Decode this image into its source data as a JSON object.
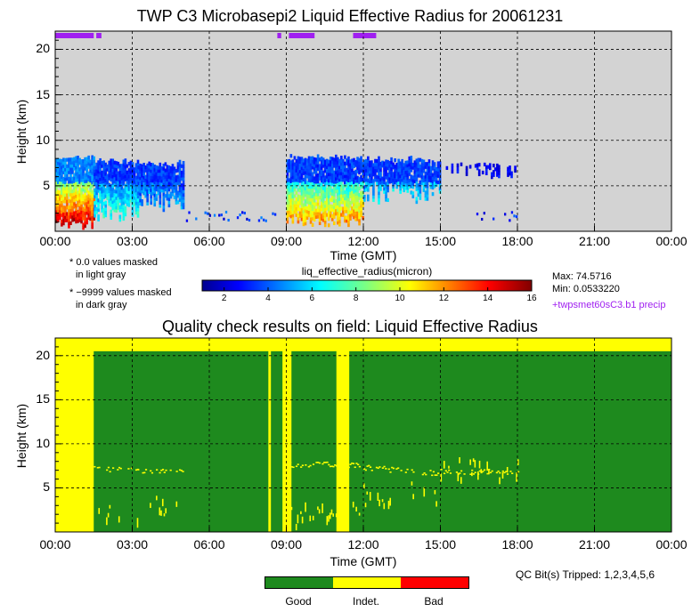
{
  "top_chart": {
    "title": "TWP C3 Microbasepi2 Liquid Effective Radius for 20061231",
    "ylabel": "Height (km)",
    "xlabel": "Time (GMT)",
    "x_ticks": [
      "00:00",
      "03:00",
      "06:00",
      "09:00",
      "12:00",
      "15:00",
      "18:00",
      "21:00",
      "00:00"
    ],
    "y_ticks": [
      "5",
      "10",
      "15",
      "20"
    ],
    "ylim": [
      0,
      22
    ],
    "xlim_hours": [
      0,
      24
    ],
    "background_color": "#d3d3d3",
    "precip_color": "#a020f0"
  },
  "notes": {
    "mask1_line1": "* 0.0 values masked",
    "mask1_line2": "in light gray",
    "mask2_line1": "* −9999 values masked",
    "mask2_line2": "in dark gray",
    "max": "Max: 74.5716",
    "min": "Min: 0.0533220",
    "precip_label": "+twpsmet60sC3.b1 precip"
  },
  "colorbar": {
    "label": "liq_effective_radius(micron)",
    "ticks": [
      "2",
      "4",
      "6",
      "8",
      "10",
      "12",
      "14",
      "16"
    ],
    "range": [
      1,
      16
    ]
  },
  "qc_chart": {
    "title": "Quality check results on field: Liquid Effective Radius",
    "ylabel": "Height (km)",
    "xlabel": "Time (GMT)",
    "x_ticks": [
      "00:00",
      "03:00",
      "06:00",
      "09:00",
      "12:00",
      "15:00",
      "18:00",
      "21:00",
      "00:00"
    ],
    "y_ticks": [
      "5",
      "10",
      "15",
      "20"
    ],
    "bits_label": "QC Bit(s) Tripped: 1,2,3,4,5,6"
  },
  "qc_legend": {
    "good": "Good",
    "indet": "Indet.",
    "bad": "Bad",
    "good_color": "#1e8a1e",
    "indet_color": "#ffff00",
    "bad_color": "#ff0000"
  },
  "chart_data": [
    {
      "type": "heatmap",
      "title": "TWP C3 Microbasepi2 Liquid Effective Radius for 20061231",
      "xlabel": "Time (GMT)",
      "ylabel": "Height (km)",
      "x_range_hours": [
        0,
        24
      ],
      "ylim": [
        0,
        22
      ],
      "colorbar_label": "liq_effective_radius(micron)",
      "value_range": [
        1,
        16
      ],
      "cloud_regions": [
        {
          "start_hour": 0.0,
          "end_hour": 1.5,
          "top_km": 8.2,
          "base_km": 0.2,
          "core_value": 4,
          "low_value": 15
        },
        {
          "start_hour": 1.5,
          "end_hour": 3.2,
          "top_km": 7.8,
          "base_km": 1.0,
          "core_value": 3,
          "low_value": 7
        },
        {
          "start_hour": 3.2,
          "end_hour": 5.0,
          "top_km": 7.6,
          "base_km": 2.0,
          "core_value": 3,
          "low_value": 5
        },
        {
          "start_hour": 9.0,
          "end_hour": 12.0,
          "top_km": 8.3,
          "base_km": 0.5,
          "core_value": 3,
          "low_value": 12
        },
        {
          "start_hour": 12.0,
          "end_hour": 15.0,
          "top_km": 8.0,
          "base_km": 3.0,
          "core_value": 3,
          "low_value": 6
        },
        {
          "start_hour": 15.0,
          "end_hour": 18.0,
          "top_km": 7.5,
          "base_km": 5.8,
          "core_value": 2,
          "low_value": 4
        }
      ],
      "precip_periods_hours": [
        [
          0.0,
          1.5
        ],
        [
          1.6,
          1.8
        ],
        [
          8.65,
          8.8
        ],
        [
          9.1,
          10.1
        ],
        [
          11.6,
          12.5
        ]
      ],
      "max": 74.5716,
      "min": 0.053322
    },
    {
      "type": "heatmap",
      "title": "Quality check results on field: Liquid Effective Radius",
      "xlabel": "Time (GMT)",
      "ylabel": "Height (km)",
      "x_range_hours": [
        0,
        24
      ],
      "ylim": [
        0,
        22
      ],
      "categories": [
        "Good",
        "Indet.",
        "Bad"
      ],
      "indeterminate_time_bands_hours": [
        [
          0.0,
          1.5
        ],
        [
          8.3,
          8.4
        ],
        [
          8.85,
          9.2
        ],
        [
          10.95,
          11.45
        ]
      ],
      "indeterminate_top_layer_km": [
        20.5,
        22
      ],
      "bits_tripped": [
        1,
        2,
        3,
        4,
        5,
        6
      ]
    }
  ]
}
